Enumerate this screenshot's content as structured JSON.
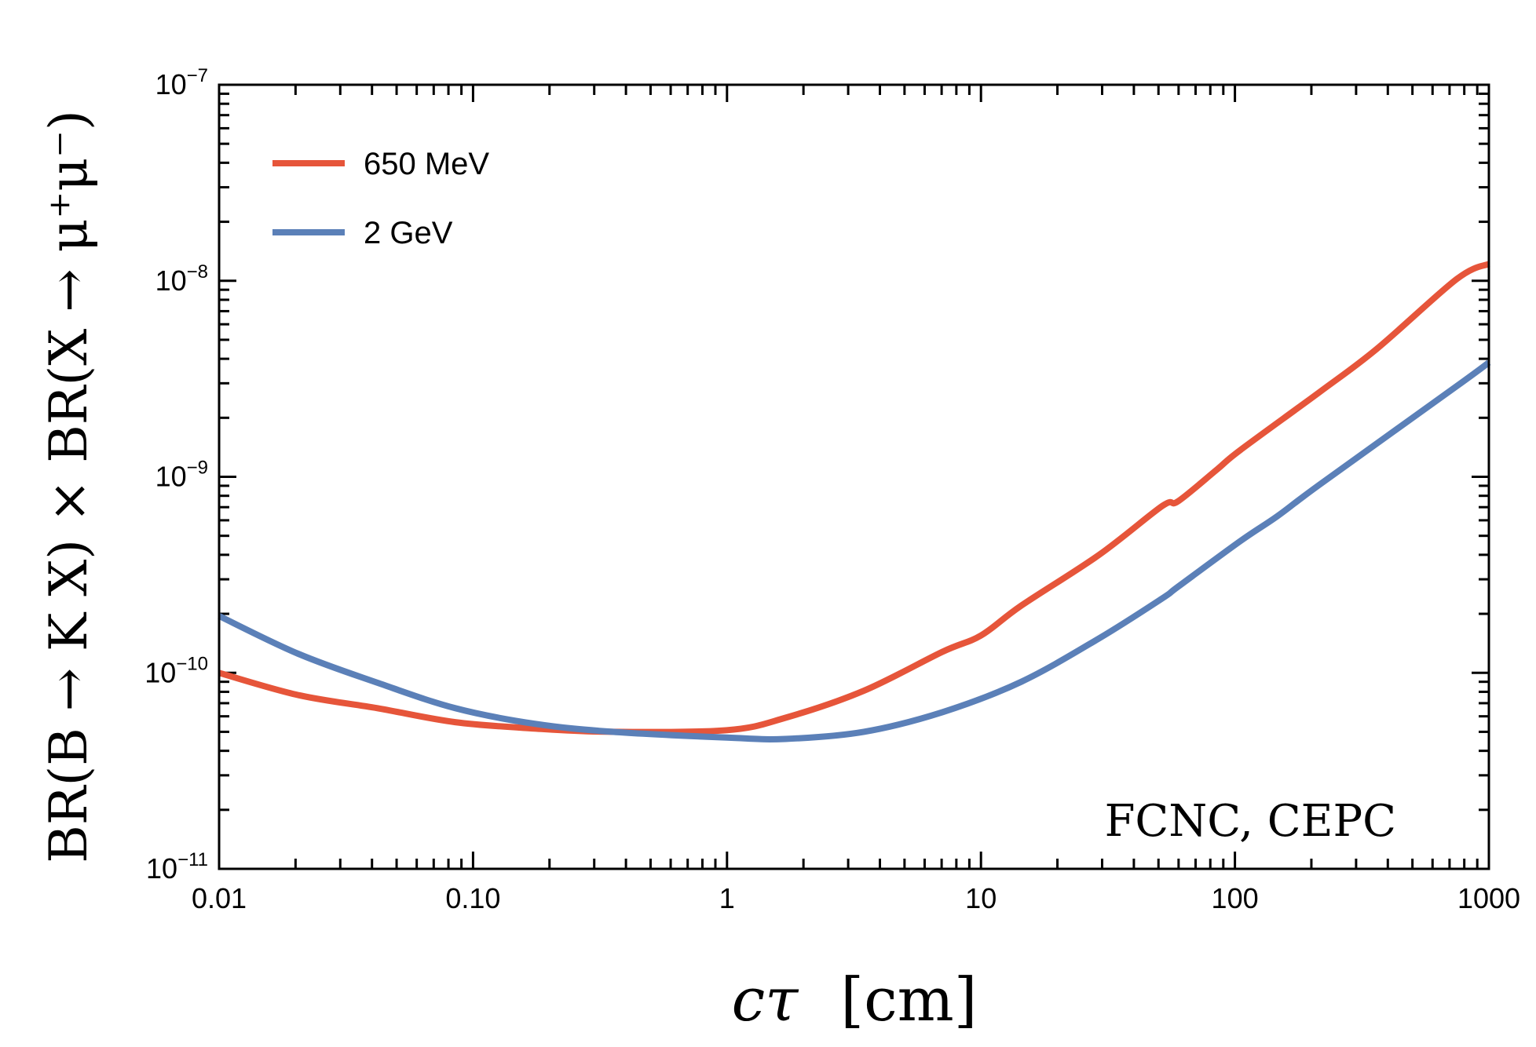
{
  "chart_data": {
    "type": "line",
    "title": "",
    "xlabel": "cτ [cm]",
    "xlabel_parts": {
      "var": "cτ",
      "unit": "[cm]"
    },
    "ylabel": "BR(B → K X) × BR(X → μ⁺μ⁻)",
    "xscale": "log",
    "yscale": "log",
    "xlim": [
      0.01,
      1000
    ],
    "ylim": [
      1e-11,
      1e-07
    ],
    "grid": false,
    "legend_position": "top-left",
    "annotation": "FCNC, CEPC",
    "annotation_position": "bottom-right",
    "x_ticks": [
      {
        "value": 0.01,
        "label": "0.01"
      },
      {
        "value": 0.1,
        "label": "0.10"
      },
      {
        "value": 1,
        "label": "1"
      },
      {
        "value": 10,
        "label": "10"
      },
      {
        "value": 100,
        "label": "100"
      },
      {
        "value": 1000,
        "label": "1000"
      }
    ],
    "y_ticks": [
      {
        "value": 1e-11,
        "base": "10",
        "exp": "−11"
      },
      {
        "value": 1e-10,
        "base": "10",
        "exp": "−10"
      },
      {
        "value": 1e-09,
        "base": "10",
        "exp": "−9"
      },
      {
        "value": 1e-08,
        "base": "10",
        "exp": "−8"
      },
      {
        "value": 1e-07,
        "base": "10",
        "exp": "−7"
      }
    ],
    "series": [
      {
        "name": "650 MeV",
        "color": "#E6553A",
        "x": [
          0.01,
          0.0205,
          0.042,
          0.085,
          0.174,
          0.354,
          1.0,
          1.7,
          3.46,
          7.05,
          10,
          14.4,
          29.2,
          51.8,
          59.7,
          85,
          105,
          215,
          361,
          747,
          1000
        ],
        "y": [
          1e-10,
          7.7e-11,
          6.6e-11,
          5.6e-11,
          5.2e-11,
          5e-11,
          5.1e-11,
          5.9e-11,
          8.1e-11,
          1.28e-10,
          1.55e-10,
          2.2e-10,
          4e-10,
          7.1e-10,
          7.5e-10,
          1.09e-09,
          1.37e-09,
          2.7e-09,
          4.48e-09,
          1.02e-08,
          1.22e-08
        ]
      },
      {
        "name": "2 GeV",
        "color": "#5B80B8",
        "x": [
          0.01,
          0.0205,
          0.042,
          0.085,
          0.174,
          0.354,
          1.0,
          1.7,
          3.46,
          7.05,
          14.4,
          29.2,
          51.8,
          59.7,
          105,
          147,
          215,
          747,
          1000
        ],
        "y": [
          1.95e-10,
          1.25e-10,
          8.9e-11,
          6.6e-11,
          5.5e-11,
          5e-11,
          4.67e-11,
          4.6e-11,
          5e-11,
          6.3e-11,
          9e-11,
          1.5e-10,
          2.4e-10,
          2.75e-10,
          4.7e-10,
          6.3e-10,
          9.1e-10,
          2.9e-09,
          3.83e-09
        ]
      }
    ]
  }
}
